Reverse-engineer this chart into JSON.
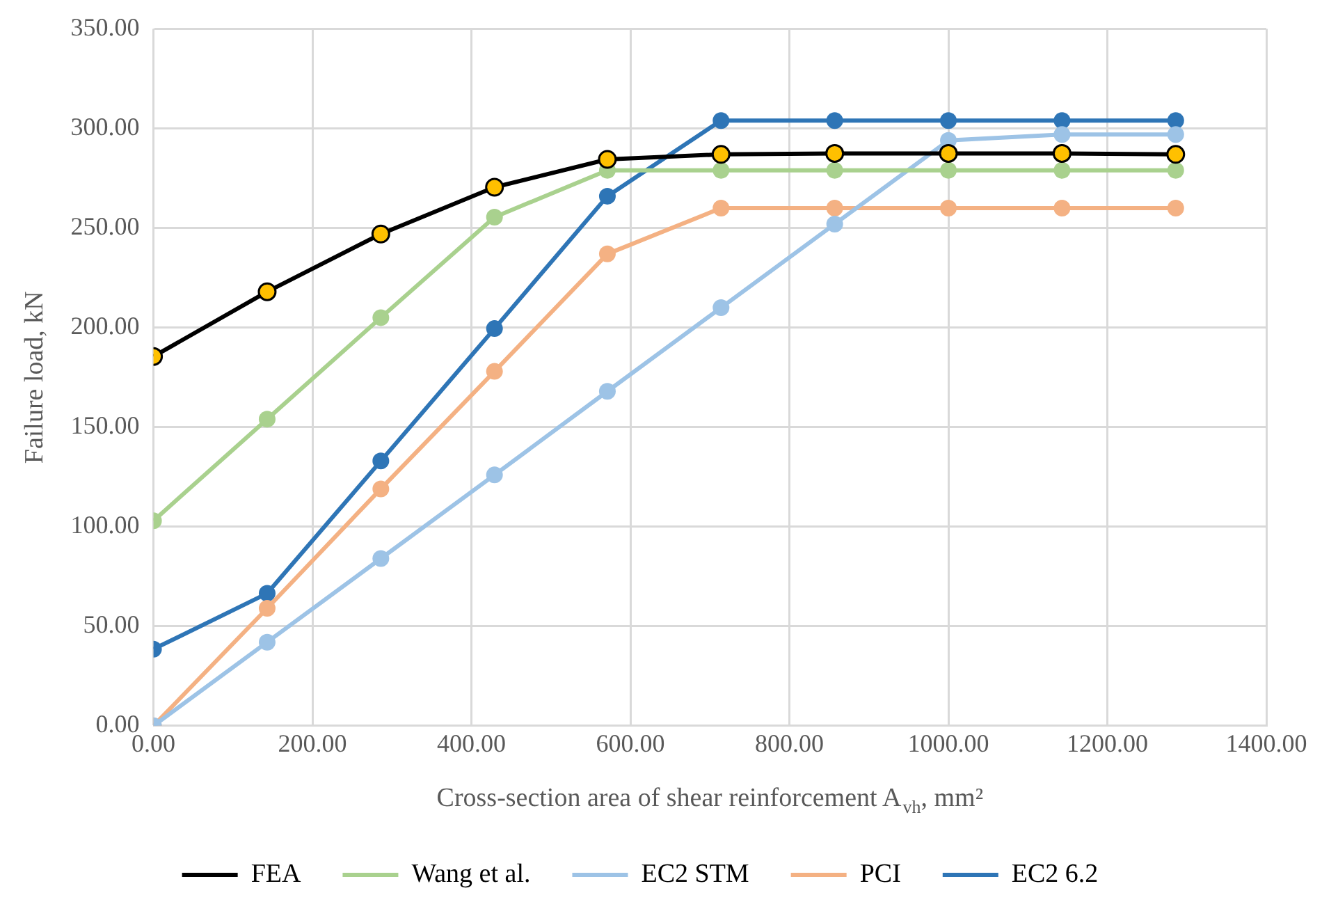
{
  "chart_data": {
    "type": "line",
    "xlabel": "Cross-section area of shear reinforcement A$_{vh}$, mm²",
    "ylabel": "Failure load, kN",
    "x": [
      0,
      143,
      286,
      429,
      571,
      714,
      857,
      1000,
      1143,
      1286
    ],
    "xlim": [
      0,
      1400
    ],
    "xticks": [
      {
        "value": 0,
        "label": "0.00"
      },
      {
        "value": 200,
        "label": "200.00"
      },
      {
        "value": 400,
        "label": "400.00"
      },
      {
        "value": 600,
        "label": "600.00"
      },
      {
        "value": 800,
        "label": "800.00"
      },
      {
        "value": 1000,
        "label": "1000.00"
      },
      {
        "value": 1200,
        "label": "1200.00"
      },
      {
        "value": 1400,
        "label": "1400.00"
      }
    ],
    "ylim": [
      0,
      350
    ],
    "yticks": [
      {
        "value": 0,
        "label": "0.00"
      },
      {
        "value": 50,
        "label": "50.00"
      },
      {
        "value": 100,
        "label": "100.00"
      },
      {
        "value": 150,
        "label": "150.00"
      },
      {
        "value": 200,
        "label": "200.00"
      },
      {
        "value": 250,
        "label": "250.00"
      },
      {
        "value": 300,
        "label": "300.00"
      },
      {
        "value": 350,
        "label": "350.00"
      }
    ],
    "grid": true,
    "legend": "bottom",
    "marker": "circle",
    "line_style": "solid",
    "series": [
      {
        "name": "FEA",
        "color": "#000000",
        "colors": [
          "#ffc000",
          "#ffc000",
          "#ffc000",
          "#ffc000",
          "#ffc000",
          "#ffc000",
          "#ffc000",
          "#ffc000",
          "#ffc000",
          "#ffc000"
        ],
        "values": [
          185.5,
          218,
          247,
          270.5,
          284.5,
          287,
          287.5,
          287.5,
          287.5,
          287
        ]
      },
      {
        "name": "Wang et al.",
        "color": "#a9d18e",
        "values": [
          103,
          154,
          205,
          255.5,
          279,
          279,
          279,
          279,
          279,
          279
        ]
      },
      {
        "name": "EC2 STM",
        "color": "#9dc3e6",
        "values": [
          0,
          42,
          84,
          126,
          168,
          210,
          252,
          294,
          297,
          297
        ]
      },
      {
        "name": "PCI",
        "color": "#f4b183",
        "values": [
          0,
          59,
          119,
          178,
          237,
          260,
          260,
          260,
          260,
          260
        ]
      },
      {
        "name": "EC2 6.2",
        "color": "#2e75b6",
        "values": [
          38.5,
          66.5,
          133,
          199.5,
          266,
          304,
          304,
          304,
          304,
          304
        ]
      }
    ]
  }
}
